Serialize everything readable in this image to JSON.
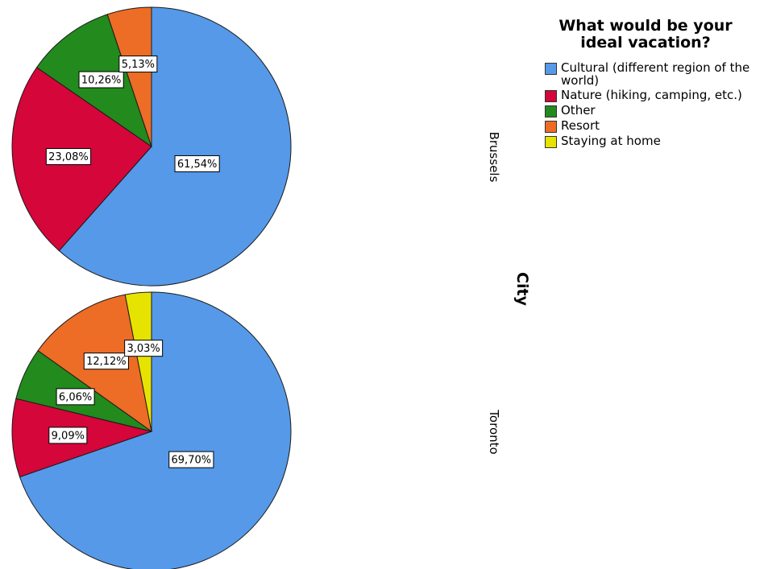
{
  "chart_data": {
    "type": "pie",
    "legend_title": "What would be your ideal vacation?",
    "facet_title": "City",
    "categories": [
      "Cultural (different region of the world)",
      "Nature (hiking, camping, etc.)",
      "Other",
      "Resort",
      "Staying at home"
    ],
    "colors": [
      "#5599e8",
      "#d4063a",
      "#238a1e",
      "#ed6c26",
      "#e7e300"
    ],
    "panels": [
      {
        "name": "Brussels",
        "values": [
          61.54,
          23.08,
          10.26,
          5.13,
          0
        ],
        "labels": [
          "61,54%",
          "23,08%",
          "10,26%",
          "5,13%",
          ""
        ]
      },
      {
        "name": "Toronto",
        "values": [
          69.7,
          9.09,
          6.06,
          12.12,
          3.03
        ],
        "labels": [
          "69,70%",
          "9,09%",
          "6,06%",
          "12,12%",
          "3,03%"
        ]
      }
    ],
    "legend_position": "top-right"
  }
}
